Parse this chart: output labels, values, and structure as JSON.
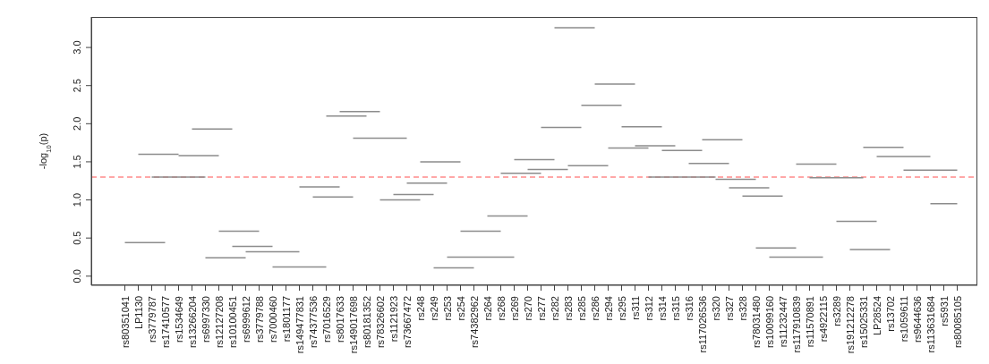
{
  "chart_data": {
    "type": "line",
    "ylabel": "-log$_{10}$(p)",
    "marker": "none",
    "line_style": "solid",
    "categories": [
      "rs80351041",
      "LP1130",
      "rs3779787",
      "rs17410577",
      "rs1534649",
      "rs13266204",
      "rs6997330",
      "rs12127208",
      "rs10100451",
      "rs6999612",
      "rs3779788",
      "rs7000460",
      "rs1801177",
      "rs149477831",
      "rs74377536",
      "rs7016529",
      "rs8017633",
      "rs149017698",
      "rs80181352",
      "rs78326602",
      "rs1121923",
      "rs73667472",
      "rs248",
      "rs249",
      "rs253",
      "rs254",
      "rs74382962",
      "rs264",
      "rs268",
      "rs269",
      "rs270",
      "rs277",
      "rs282",
      "rs283",
      "rs285",
      "rs286",
      "rs294",
      "rs295",
      "rs311",
      "rs312",
      "rs314",
      "rs315",
      "rs316",
      "rs117026536",
      "rs320",
      "rs327",
      "rs328",
      "rs78031480",
      "rs10099160",
      "rs11232447",
      "rs117910839",
      "rs11570891",
      "rs4922115",
      "rs3289",
      "rs191212278",
      "rs15025331",
      "LP28524",
      "rs13702",
      "rs1059611",
      "rs9644636",
      "rs113631684",
      "rs5931",
      "rs80085105"
    ],
    "ylim": [
      -0.12,
      3.4
    ],
    "yticks": [
      {
        "value": 0,
        "label": "0.0"
      },
      {
        "value": 0.5,
        "label": "0.5"
      },
      {
        "value": 1,
        "label": "1.0"
      },
      {
        "value": 1.5,
        "label": "1.5"
      },
      {
        "value": 2,
        "label": "2.0"
      },
      {
        "value": 2.5,
        "label": "2.5"
      },
      {
        "value": 3,
        "label": "3.0"
      }
    ],
    "ref_lines": [
      {
        "axis": "y",
        "value": 1.3,
        "color": "#ff5050",
        "line_style": "dashed"
      }
    ],
    "series": [
      {
        "color": "#8c8c8c",
        "values": [
          0.44,
          0.44,
          0.44,
          0.44,
          null,
          1.93,
          1.93,
          1.93,
          1.93,
          null,
          null,
          0.12,
          0.12,
          0.12,
          0.12,
          0.12,
          null,
          1.81,
          1.81,
          1.81,
          1.81,
          1.81,
          null,
          0.11,
          0.11,
          0.11,
          0.11,
          null,
          null,
          1.53,
          1.53,
          1.53,
          1.53,
          null,
          2.24,
          2.24,
          2.24,
          2.24,
          null,
          1.3,
          1.3,
          1.3,
          1.3,
          1.3,
          1.3,
          null,
          1.05,
          1.05,
          1.05,
          1.05,
          null,
          1.29,
          1.29,
          1.29,
          1.29,
          1.29,
          null,
          null,
          1.39,
          1.39,
          1.39,
          1.39,
          1.39
        ]
      },
      {
        "color": "#8c8c8c",
        "values": [
          null,
          1.6,
          1.6,
          1.6,
          1.6,
          null,
          0.24,
          0.24,
          0.24,
          0.24,
          null,
          null,
          null,
          1.17,
          1.17,
          1.17,
          1.17,
          null,
          null,
          1.0,
          1.0,
          1.0,
          1.0,
          null,
          0.25,
          0.25,
          0.25,
          0.25,
          0.25,
          0.25,
          null,
          1.95,
          1.95,
          1.95,
          1.95,
          null,
          1.68,
          1.68,
          1.68,
          1.68,
          null,
          null,
          1.48,
          1.48,
          1.48,
          1.48,
          null,
          0.37,
          0.37,
          0.37,
          0.37,
          null,
          null,
          0.72,
          0.72,
          0.72,
          0.72,
          null,
          null,
          null,
          0.95,
          0.95,
          0.95
        ]
      },
      {
        "color": "#8c8c8c",
        "values": [
          null,
          null,
          1.3,
          1.3,
          1.3,
          1.3,
          1.3,
          null,
          0.39,
          0.39,
          0.39,
          0.39,
          null,
          null,
          1.04,
          1.04,
          1.04,
          1.04,
          null,
          null,
          1.07,
          1.07,
          1.07,
          1.07,
          null,
          0.59,
          0.59,
          0.59,
          0.59,
          null,
          1.4,
          1.4,
          1.4,
          1.4,
          null,
          2.52,
          2.52,
          2.52,
          2.52,
          null,
          1.65,
          1.65,
          1.65,
          1.65,
          null,
          1.16,
          1.16,
          1.16,
          1.16,
          null,
          null,
          null,
          null,
          null,
          0.35,
          0.35,
          0.35,
          0.35,
          null,
          null,
          null,
          null,
          null
        ]
      },
      {
        "color": "#8c8c8c",
        "values": [
          null,
          null,
          null,
          null,
          1.58,
          1.58,
          1.58,
          1.58,
          null,
          0.32,
          0.32,
          0.32,
          0.32,
          0.32,
          null,
          2.1,
          2.1,
          2.1,
          2.1,
          null,
          null,
          1.22,
          1.22,
          1.22,
          1.22,
          null,
          null,
          0.79,
          0.79,
          0.79,
          0.79,
          null,
          3.26,
          3.26,
          3.26,
          3.26,
          null,
          1.96,
          1.96,
          1.96,
          1.96,
          null,
          null,
          1.79,
          1.79,
          1.79,
          1.79,
          null,
          0.25,
          0.25,
          0.25,
          0.25,
          0.25,
          null,
          null,
          1.69,
          1.69,
          1.69,
          1.69,
          null,
          null,
          null,
          null
        ]
      },
      {
        "color": "#8c8c8c",
        "values": [
          null,
          null,
          null,
          null,
          null,
          null,
          null,
          0.59,
          0.59,
          0.59,
          0.59,
          null,
          null,
          null,
          null,
          null,
          2.16,
          2.16,
          2.16,
          2.16,
          null,
          null,
          1.5,
          1.5,
          1.5,
          1.5,
          null,
          null,
          1.35,
          1.35,
          1.35,
          1.35,
          null,
          1.45,
          1.45,
          1.45,
          1.45,
          null,
          1.71,
          1.71,
          1.71,
          1.71,
          null,
          null,
          1.27,
          1.27,
          1.27,
          1.27,
          null,
          null,
          1.47,
          1.47,
          1.47,
          1.47,
          null,
          null,
          1.57,
          1.57,
          1.57,
          1.57,
          1.57,
          null,
          null
        ]
      }
    ]
  }
}
